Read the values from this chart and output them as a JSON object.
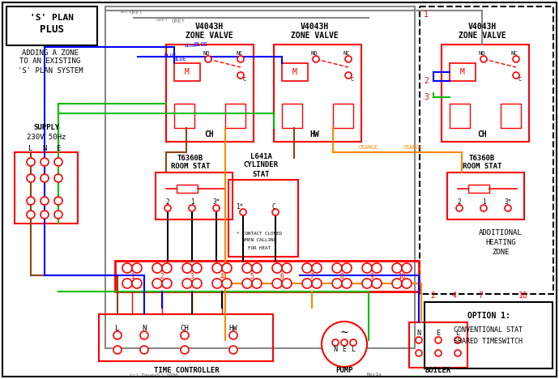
{
  "title": "'S' PLAN PLUS",
  "subtitle": "ADDING A ZONE\nTO AN EXISTING\n'S' PLAN SYSTEM",
  "bg_color": "#ffffff",
  "wire_colors": {
    "grey": "#888888",
    "blue": "#0000ff",
    "green": "#00bb00",
    "orange": "#ff8800",
    "brown": "#8B4513",
    "black": "#000000",
    "red": "#ff0000"
  },
  "option_text": "OPTION 1:\n\nCONVENTIONAL STAT\nSHARED TIMESWITCH",
  "additional_zone_text": "ADDITIONAL\nHEATING\nZONE",
  "supply_text": "SUPPLY\n230V 50Hz",
  "time_controller_label": "TIME CONTROLLER",
  "pump_label": "PUMP",
  "boiler_label": "BOILER"
}
